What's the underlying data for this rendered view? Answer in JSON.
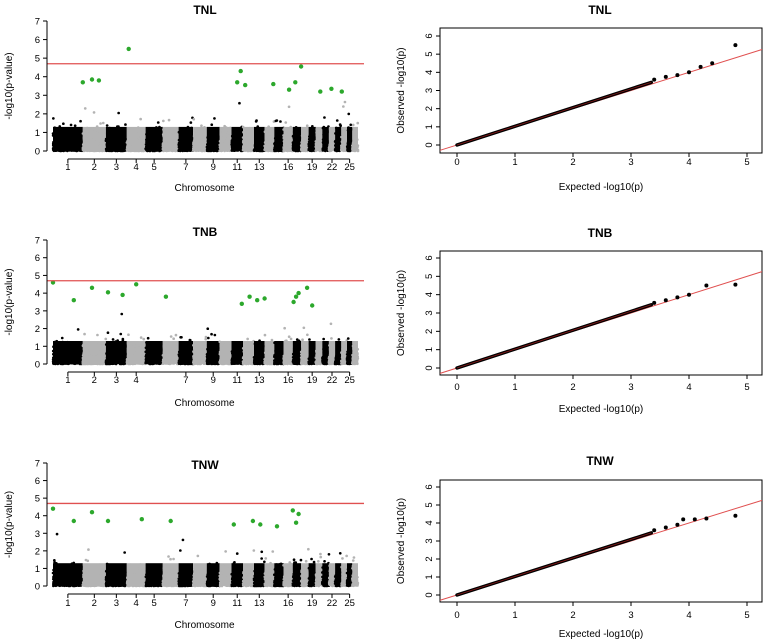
{
  "chart_data": [
    {
      "type": "scatter",
      "subtype": "manhattan",
      "title": "TNL",
      "xlabel": "Chromosome",
      "ylabel": "-log10(p-value)",
      "ylim": [
        0,
        7
      ],
      "yticks": [
        0,
        1,
        2,
        3,
        4,
        5,
        6,
        7
      ],
      "xtick_labels": [
        "1",
        "2",
        "3",
        "4",
        "5",
        "7",
        "9",
        "11",
        "13",
        "16",
        "19",
        "22",
        "25"
      ],
      "threshold": 4.7,
      "threshold_color": "#e05050",
      "colors": {
        "odd": "#000000",
        "even": "#b3b3b3",
        "significant": "#2ca82c"
      },
      "significant_points": [
        {
          "chr": 2,
          "y": 3.7
        },
        {
          "chr": 2,
          "y": 3.8
        },
        {
          "chr": 2,
          "y": 3.85
        },
        {
          "chr": 4,
          "y": 5.5
        },
        {
          "chr": 11,
          "y": 4.3
        },
        {
          "chr": 11,
          "y": 3.7
        },
        {
          "chr": 12,
          "y": 3.55
        },
        {
          "chr": 14,
          "y": 3.6
        },
        {
          "chr": 16,
          "y": 3.3
        },
        {
          "chr": 17,
          "y": 3.7
        },
        {
          "chr": 18,
          "y": 4.55
        },
        {
          "chr": 20,
          "y": 3.2
        },
        {
          "chr": 22,
          "y": 3.35
        },
        {
          "chr": 24,
          "y": 3.2
        }
      ]
    },
    {
      "type": "scatter",
      "subtype": "qq",
      "title": "TNL",
      "xlabel": "Expected -log10(p)",
      "ylabel": "Observed -log10(p)",
      "xlim": [
        0,
        5
      ],
      "ylim": [
        0,
        6
      ],
      "xticks": [
        0,
        1,
        2,
        3,
        4,
        5
      ],
      "yticks": [
        0,
        1,
        2,
        3,
        4,
        5,
        6
      ],
      "reference_line_color": "#e05050",
      "tail_points": [
        [
          3.4,
          3.6
        ],
        [
          3.6,
          3.75
        ],
        [
          3.8,
          3.85
        ],
        [
          4.0,
          4.0
        ],
        [
          4.2,
          4.3
        ],
        [
          4.4,
          4.5
        ],
        [
          4.8,
          5.5
        ]
      ]
    },
    {
      "type": "scatter",
      "subtype": "manhattan",
      "title": "TNB",
      "xlabel": "Chromosome",
      "ylabel": "-log10(p-value)",
      "ylim": [
        0,
        7
      ],
      "yticks": [
        0,
        1,
        2,
        3,
        4,
        5,
        6,
        7
      ],
      "xtick_labels": [
        "1",
        "2",
        "3",
        "4",
        "7",
        "9",
        "11",
        "13",
        "16",
        "19",
        "22",
        "25"
      ],
      "threshold": 4.7,
      "threshold_color": "#e05050",
      "colors": {
        "odd": "#000000",
        "even": "#b3b3b3",
        "significant": "#2ca82c"
      },
      "significant_points": [
        {
          "chr": 1,
          "y": 4.6
        },
        {
          "chr": 1,
          "y": 3.6
        },
        {
          "chr": 2,
          "y": 4.3
        },
        {
          "chr": 3,
          "y": 4.05
        },
        {
          "chr": 3,
          "y": 3.9
        },
        {
          "chr": 4,
          "y": 4.5
        },
        {
          "chr": 6,
          "y": 3.8
        },
        {
          "chr": 11,
          "y": 3.4
        },
        {
          "chr": 12,
          "y": 3.8
        },
        {
          "chr": 13,
          "y": 3.6
        },
        {
          "chr": 14,
          "y": 3.7
        },
        {
          "chr": 17,
          "y": 4.0
        },
        {
          "chr": 17,
          "y": 3.8
        },
        {
          "chr": 17,
          "y": 3.5
        },
        {
          "chr": 18,
          "y": 4.3
        },
        {
          "chr": 19,
          "y": 3.3
        }
      ]
    },
    {
      "type": "scatter",
      "subtype": "qq",
      "title": "TNB",
      "xlabel": "Expected -log10(p)",
      "ylabel": "Observed -log10(p)",
      "xlim": [
        0,
        5
      ],
      "ylim": [
        0,
        6
      ],
      "xticks": [
        0,
        1,
        2,
        3,
        4,
        5
      ],
      "yticks": [
        0,
        1,
        2,
        3,
        4,
        5,
        6
      ],
      "reference_line_color": "#e05050",
      "tail_points": [
        [
          3.4,
          3.55
        ],
        [
          3.6,
          3.7
        ],
        [
          3.8,
          3.85
        ],
        [
          4.0,
          4.0
        ],
        [
          4.3,
          4.5
        ],
        [
          4.8,
          4.55
        ]
      ]
    },
    {
      "type": "scatter",
      "subtype": "manhattan",
      "title": "TNW",
      "xlabel": "Chromosome",
      "ylabel": "-log10(p-value)",
      "ylim": [
        0,
        7
      ],
      "yticks": [
        0,
        1,
        2,
        3,
        4,
        5,
        6,
        7
      ],
      "xtick_labels": [
        "1",
        "2",
        "3",
        "4",
        "5",
        "7",
        "9",
        "11",
        "13",
        "16",
        "19",
        "22",
        "25"
      ],
      "threshold": 4.7,
      "threshold_color": "#e05050",
      "colors": {
        "odd": "#000000",
        "even": "#b3b3b3",
        "significant": "#2ca82c"
      },
      "significant_points": [
        {
          "chr": 1,
          "y": 4.4
        },
        {
          "chr": 1,
          "y": 3.7
        },
        {
          "chr": 2,
          "y": 4.2
        },
        {
          "chr": 3,
          "y": 3.7
        },
        {
          "chr": 4,
          "y": 3.8
        },
        {
          "chr": 6,
          "y": 3.7
        },
        {
          "chr": 11,
          "y": 3.5
        },
        {
          "chr": 12,
          "y": 3.7
        },
        {
          "chr": 13,
          "y": 3.5
        },
        {
          "chr": 15,
          "y": 3.4
        },
        {
          "chr": 17,
          "y": 4.3
        },
        {
          "chr": 17,
          "y": 4.1
        },
        {
          "chr": 17,
          "y": 3.6
        }
      ]
    },
    {
      "type": "scatter",
      "subtype": "qq",
      "title": "TNW",
      "xlabel": "Expected -log10(p)",
      "ylabel": "Observed -log10(p)",
      "xlim": [
        0,
        5
      ],
      "ylim": [
        0,
        6
      ],
      "xticks": [
        0,
        1,
        2,
        3,
        4,
        5
      ],
      "yticks": [
        0,
        1,
        2,
        3,
        4,
        5,
        6
      ],
      "reference_line_color": "#e05050",
      "tail_points": [
        [
          3.4,
          3.6
        ],
        [
          3.6,
          3.75
        ],
        [
          3.8,
          3.9
        ],
        [
          3.9,
          4.2
        ],
        [
          4.1,
          4.2
        ],
        [
          4.3,
          4.25
        ],
        [
          4.8,
          4.4
        ]
      ]
    }
  ]
}
